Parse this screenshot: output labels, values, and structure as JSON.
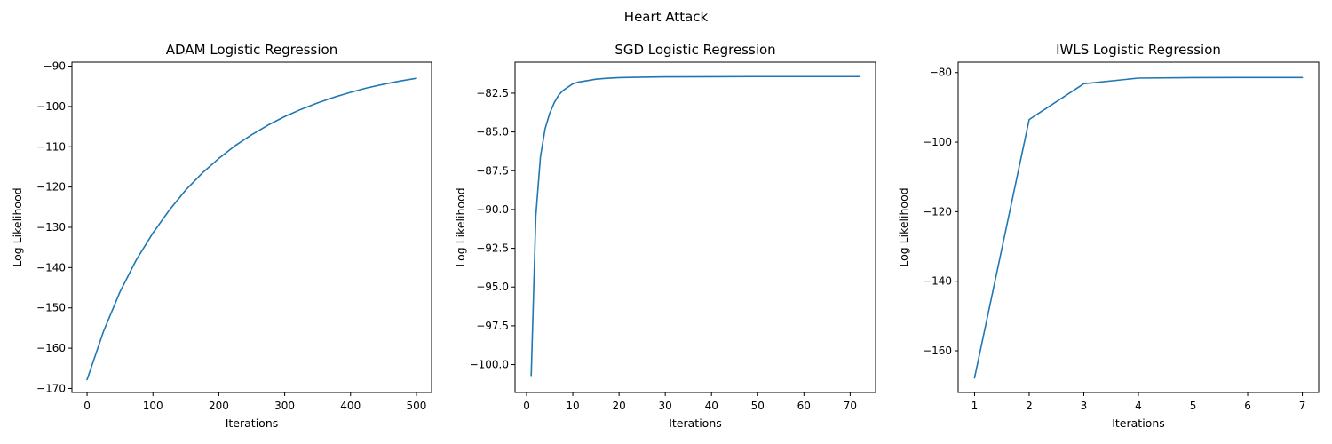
{
  "figure": {
    "title": "Heart Attack",
    "line_color": "#1f77b4"
  },
  "chart_data": [
    {
      "type": "line",
      "title": "ADAM Logistic Regression",
      "xlabel": "Iterations",
      "ylabel": "Log Likelihood",
      "xlim": [
        -23,
        523
      ],
      "ylim": [
        -171,
        -89
      ],
      "xticks": [
        0,
        100,
        200,
        300,
        400,
        500
      ],
      "yticks": [
        -170,
        -160,
        -150,
        -140,
        -130,
        -120,
        -110,
        -100,
        -90
      ],
      "grid": false,
      "x": [
        0,
        25,
        50,
        75,
        100,
        125,
        150,
        175,
        200,
        225,
        250,
        275,
        300,
        325,
        350,
        375,
        400,
        425,
        450,
        475,
        500
      ],
      "y": [
        -167.8,
        -155.8,
        -146.0,
        -138.0,
        -131.4,
        -125.7,
        -120.7,
        -116.5,
        -112.9,
        -109.7,
        -107.0,
        -104.6,
        -102.5,
        -100.7,
        -99.1,
        -97.7,
        -96.5,
        -95.4,
        -94.5,
        -93.7,
        -93.0
      ]
    },
    {
      "type": "line",
      "title": "SGD Logistic Regression",
      "xlabel": "Iterations",
      "ylabel": "Log Likelihood",
      "xlim": [
        -2.5,
        75.5
      ],
      "ylim": [
        -101.8,
        -80.5
      ],
      "xticks": [
        0,
        10,
        20,
        30,
        40,
        50,
        60,
        70
      ],
      "yticks": [
        -100.0,
        -97.5,
        -95.0,
        -92.5,
        -90.0,
        -87.5,
        -85.0,
        -82.5
      ],
      "grid": false,
      "x": [
        1,
        2,
        3,
        4,
        5,
        6,
        7,
        8,
        9,
        10,
        11,
        12,
        13,
        14,
        15,
        17,
        20,
        25,
        30,
        40,
        50,
        60,
        72
      ],
      "y": [
        -100.7,
        -90.4,
        -86.6,
        -84.8,
        -83.8,
        -83.1,
        -82.6,
        -82.3,
        -82.1,
        -81.9,
        -81.8,
        -81.75,
        -81.7,
        -81.65,
        -81.6,
        -81.55,
        -81.5,
        -81.47,
        -81.45,
        -81.44,
        -81.43,
        -81.43,
        -81.43
      ]
    },
    {
      "type": "line",
      "title": "IWLS Logistic Regression",
      "xlabel": "Iterations",
      "ylabel": "Log Likelihood",
      "xlim": [
        0.7,
        7.3
      ],
      "ylim": [
        -172,
        -77
      ],
      "xticks": [
        1,
        2,
        3,
        4,
        5,
        6,
        7
      ],
      "yticks": [
        -160,
        -140,
        -120,
        -100,
        -80
      ],
      "grid": false,
      "x": [
        1,
        2,
        3,
        4,
        5,
        6,
        7
      ],
      "y": [
        -167.8,
        -93.5,
        -83.2,
        -81.6,
        -81.45,
        -81.43,
        -81.43
      ]
    }
  ]
}
